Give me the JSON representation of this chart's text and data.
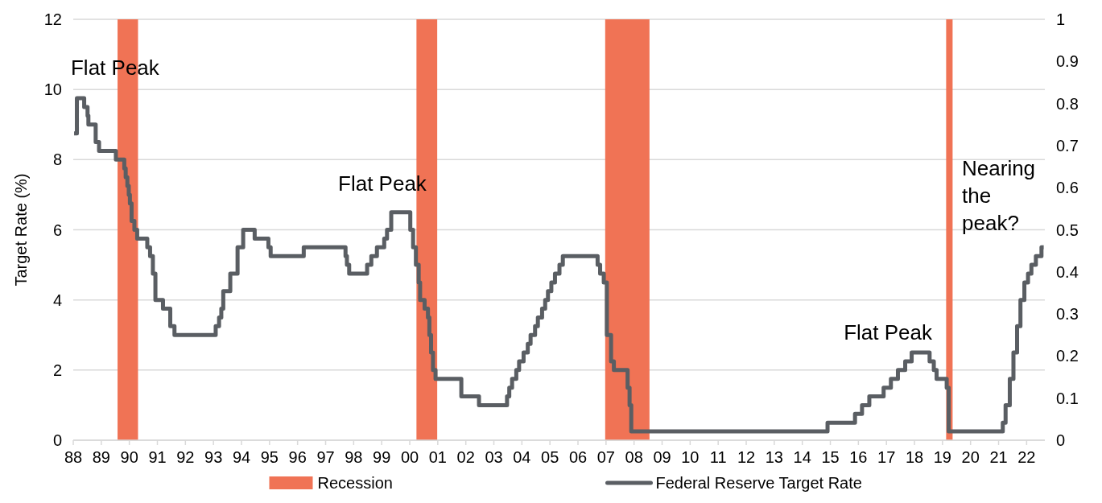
{
  "chart_data": {
    "type": "step",
    "ylabel": "Target Rate (%)",
    "xlim": [
      1988,
      2022.65
    ],
    "xticks": [
      {
        "value": 1988,
        "label": "88"
      },
      {
        "value": 1989,
        "label": "89"
      },
      {
        "value": 1990,
        "label": "90"
      },
      {
        "value": 1991,
        "label": "91"
      },
      {
        "value": 1992,
        "label": "92"
      },
      {
        "value": 1993,
        "label": "93"
      },
      {
        "value": 1994,
        "label": "94"
      },
      {
        "value": 1995,
        "label": "95"
      },
      {
        "value": 1996,
        "label": "96"
      },
      {
        "value": 1997,
        "label": "97"
      },
      {
        "value": 1998,
        "label": "98"
      },
      {
        "value": 1999,
        "label": "99"
      },
      {
        "value": 2000,
        "label": "00"
      },
      {
        "value": 2001,
        "label": "01"
      },
      {
        "value": 2002,
        "label": "02"
      },
      {
        "value": 2003,
        "label": "03"
      },
      {
        "value": 2004,
        "label": "04"
      },
      {
        "value": 2005,
        "label": "05"
      },
      {
        "value": 2006,
        "label": "06"
      },
      {
        "value": 2007,
        "label": "07"
      },
      {
        "value": 2008,
        "label": "08"
      },
      {
        "value": 2009,
        "label": "09"
      },
      {
        "value": 2010,
        "label": "10"
      },
      {
        "value": 2011,
        "label": "11"
      },
      {
        "value": 2012,
        "label": "12"
      },
      {
        "value": 2013,
        "label": "13"
      },
      {
        "value": 2014,
        "label": "14"
      },
      {
        "value": 2015,
        "label": "15"
      },
      {
        "value": 2016,
        "label": "16"
      },
      {
        "value": 2017,
        "label": "17"
      },
      {
        "value": 2018,
        "label": "18"
      },
      {
        "value": 2019,
        "label": "19"
      },
      {
        "value": 2020,
        "label": "20"
      },
      {
        "value": 2021,
        "label": "21"
      },
      {
        "value": 2022,
        "label": "22"
      }
    ],
    "ylim": [
      0,
      12
    ],
    "yticks": [
      0,
      2,
      4,
      6,
      8,
      10,
      12
    ],
    "y2lim": [
      0,
      1
    ],
    "y2ticks": [
      0,
      0.1,
      0.2,
      0.3,
      0.4,
      0.5,
      0.6,
      0.7,
      0.8,
      0.9,
      1
    ],
    "grid": "y",
    "legend": "bottom",
    "bands": [
      {
        "axis": "x",
        "from": 1989.58,
        "to": 1990.31,
        "label": "Recession",
        "color": "#f07355"
      },
      {
        "axis": "x",
        "from": 2000.24,
        "to": 2000.98,
        "color": "#f07355"
      },
      {
        "axis": "x",
        "from": 2006.97,
        "to": 2008.55,
        "color": "#f07355"
      },
      {
        "axis": "x",
        "from": 2019.13,
        "to": 2019.36,
        "color": "#f07355"
      }
    ],
    "series": [
      {
        "name": "Federal Reserve Target Rate",
        "color": "#5a5e63",
        "x": [
          1988.03,
          1988.13,
          1988.39,
          1988.51,
          1988.54,
          1988.8,
          1988.92,
          1989.52,
          1989.82,
          1989.87,
          1989.93,
          1989.98,
          1990.02,
          1990.08,
          1990.18,
          1990.28,
          1990.64,
          1990.74,
          1990.84,
          1990.93,
          1991.2,
          1991.46,
          1991.61,
          1993.08,
          1993.2,
          1993.28,
          1993.35,
          1993.6,
          1993.86,
          1994.06,
          1994.47,
          1994.96,
          1995.04,
          1996.22,
          1997.71,
          1997.76,
          1997.84,
          1998.48,
          1998.63,
          1998.83,
          1999.09,
          1999.19,
          1999.34,
          2000.02,
          2000.12,
          2000.22,
          2000.32,
          2000.37,
          2000.53,
          2000.65,
          2000.7,
          2000.76,
          2000.83,
          2000.92,
          2001.84,
          2002.47,
          2003.47,
          2003.55,
          2003.65,
          2003.8,
          2003.9,
          2004.06,
          2004.21,
          2004.31,
          2004.47,
          2004.57,
          2004.72,
          2004.83,
          2004.93,
          2005.05,
          2005.18,
          2005.34,
          2005.46,
          2006.7,
          2006.79,
          2006.92,
          2007.03,
          2007.18,
          2007.28,
          2007.77,
          2007.84,
          2007.9,
          2014.9,
          2015.88,
          2016.13,
          2016.39,
          2016.9,
          2017.16,
          2017.41,
          2017.67,
          2017.9,
          2018.54,
          2018.69,
          2018.79,
          2019.15,
          2019.22,
          2021.15,
          2021.25,
          2021.4,
          2021.53,
          2021.66,
          2021.78,
          2021.92,
          2022.05,
          2022.17,
          2022.33,
          2022.53,
          2022.61
        ],
        "values": [
          8.75,
          9.75,
          9.5,
          9.25,
          9.0,
          8.5,
          8.25,
          8.0,
          7.75,
          7.5,
          7.25,
          7.0,
          6.75,
          6.25,
          6.0,
          5.75,
          5.5,
          5.25,
          4.75,
          4.0,
          3.75,
          3.25,
          3.0,
          3.25,
          3.5,
          3.75,
          4.25,
          4.75,
          5.5,
          6.0,
          5.75,
          5.5,
          5.25,
          5.5,
          5.25,
          5.0,
          4.75,
          5.0,
          5.25,
          5.5,
          5.75,
          6.0,
          6.5,
          6.0,
          5.5,
          5.0,
          4.5,
          4.0,
          3.75,
          3.5,
          3.0,
          2.5,
          2.0,
          1.75,
          1.25,
          1.0,
          1.25,
          1.5,
          1.75,
          2.0,
          2.25,
          2.5,
          2.75,
          3.0,
          3.25,
          3.5,
          3.75,
          4.0,
          4.25,
          4.5,
          4.75,
          5.0,
          5.25,
          5.0,
          4.75,
          4.5,
          3.0,
          2.25,
          2.0,
          1.5,
          1.0,
          0.25,
          0.5,
          0.75,
          1.0,
          1.25,
          1.5,
          1.75,
          2.0,
          2.25,
          2.5,
          2.25,
          2.0,
          1.75,
          1.5,
          0.25,
          0.5,
          1.0,
          1.75,
          2.5,
          3.25,
          4.0,
          4.5,
          4.75,
          5.0,
          5.25,
          5.5,
          5.5
        ]
      }
    ],
    "annotations": [
      "Flat Peak",
      "Flat Peak",
      "Flat Peak",
      "Nearing the peak?"
    ]
  }
}
